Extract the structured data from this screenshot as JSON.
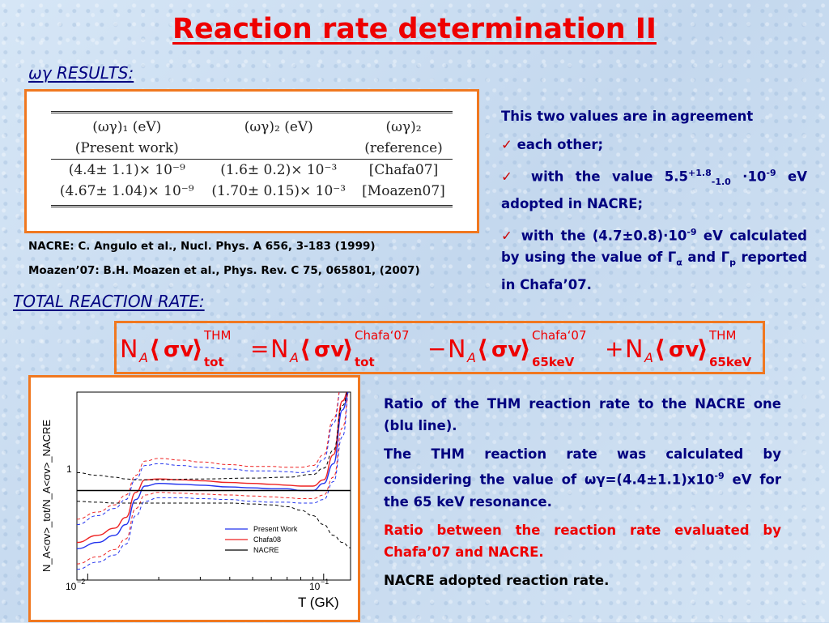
{
  "slide": {
    "title": "Reaction rate determination II",
    "section_wg": "ωγ RESULTS:",
    "section_total": "TOTAL REACTION RATE:"
  },
  "wg_table": {
    "headers_row1": [
      "(ωγ)₁ (eV)",
      "(ωγ)₂ (eV)",
      "(ωγ)₂"
    ],
    "headers_row2": [
      "(Present work)",
      "",
      "(reference)"
    ],
    "rows": [
      [
        "(4.4± 1.1)× 10⁻⁹",
        "(1.6± 0.2)× 10⁻³",
        "[Chafa07]"
      ],
      [
        "(4.67± 1.04)× 10⁻⁹",
        "(1.70± 0.15)× 10⁻³",
        "[Moazen07]"
      ]
    ]
  },
  "references": {
    "nacre": "NACRE: C. Angulo et al., Nucl. Phys. A 656, 3-183 (1999)",
    "moazen": "Moazen’07: B.H. Moazen et al., Phys. Rev. C 75, 065801, (2007)"
  },
  "agreement": {
    "intro": "This two values are in agreement",
    "tick": "✓",
    "item1": "each other;",
    "item2_a": "with the value 5.5",
    "item2_sup": "+1.8",
    "item2_sub": "-1.0",
    "item2_b": " ·10",
    "item2_exp": "-9",
    "item2_c": " eV adopted in NACRE;",
    "item3_a": "with the (4.7±0.8)·10",
    "item3_exp": "-9",
    "item3_b": " eV calculated by using the value of Γ",
    "item3_sub1": "α",
    "item3_c": " and Γ",
    "item3_sub2": "p",
    "item3_d": " reported in Chafa’07."
  },
  "formula": {
    "n": "N",
    "a": "A",
    "sv": "σv",
    "eq": "=",
    "minus": "−",
    "plus": "+",
    "thm": "THM",
    "chafa": "Chafa‘07",
    "tot": "tot",
    "kev": "65keV"
  },
  "right_text": {
    "p1": "Ratio of the THM reaction rate to the NACRE one (blu line).",
    "p2_a": "The THM reaction rate was calculated by considering the value of ωγ=(4.4±1.1)x10",
    "p2_exp": "-9",
    "p2_b": " eV for the 65 keV resonance.",
    "p3": "Ratio between the reaction rate evaluated by Chafa’07 and NACRE.",
    "p4": "NACRE adopted reaction rate."
  },
  "chart_data": {
    "type": "line",
    "xlabel": "T (GK)",
    "ylabel": "N_A<σv>_tot/N_A<σv>_NACRE",
    "xscale": "log",
    "xlim": [
      0.009,
      0.13
    ],
    "tick_labels": {
      "x_left": "10",
      "x_left_exp": "−2",
      "x_right": "10",
      "x_right_exp": "−1",
      "y_one": "1"
    },
    "legend": [
      "Present Work",
      "Chafa08",
      "NACRE"
    ],
    "colors": {
      "present": "#2233ee",
      "chafa": "#ee2222",
      "nacre": "#000000"
    },
    "series": [
      {
        "name": "Present Work",
        "style": "solid",
        "x": [
          0.009,
          0.011,
          0.013,
          0.0145,
          0.016,
          0.0175,
          0.02,
          0.025,
          0.03,
          0.04,
          0.05,
          0.06,
          0.07,
          0.08,
          0.09,
          0.1,
          0.11,
          0.12,
          0.13
        ],
        "y": [
          0.35,
          0.42,
          0.5,
          0.62,
          0.9,
          1.05,
          1.08,
          1.07,
          1.06,
          1.04,
          1.03,
          1.02,
          1.02,
          1.0,
          1.0,
          1.08,
          1.3,
          1.9,
          2.6
        ]
      },
      {
        "name": "Present Work upper",
        "style": "dashed",
        "x": [
          0.009,
          0.011,
          0.013,
          0.0145,
          0.016,
          0.0175,
          0.02,
          0.025,
          0.03,
          0.04,
          0.05,
          0.06,
          0.07,
          0.08,
          0.09,
          0.1,
          0.11,
          0.12,
          0.13
        ],
        "y": [
          0.62,
          0.72,
          0.8,
          0.9,
          1.13,
          1.28,
          1.3,
          1.28,
          1.26,
          1.24,
          1.22,
          1.22,
          1.21,
          1.2,
          1.22,
          1.35,
          1.75,
          2.3,
          2.9
        ]
      },
      {
        "name": "Present Work lower",
        "style": "dashed",
        "x": [
          0.009,
          0.011,
          0.013,
          0.0145,
          0.016,
          0.0175,
          0.02,
          0.025,
          0.03,
          0.04,
          0.05,
          0.06,
          0.07,
          0.08,
          0.09,
          0.1,
          0.11,
          0.12,
          0.13
        ],
        "y": [
          0.12,
          0.2,
          0.28,
          0.4,
          0.72,
          0.88,
          0.92,
          0.92,
          0.91,
          0.9,
          0.88,
          0.87,
          0.87,
          0.86,
          0.86,
          0.9,
          1.1,
          1.6,
          2.3
        ]
      },
      {
        "name": "Chafa08",
        "style": "solid",
        "x": [
          0.009,
          0.011,
          0.013,
          0.0145,
          0.016,
          0.0175,
          0.02,
          0.025,
          0.03,
          0.04,
          0.05,
          0.06,
          0.07,
          0.08,
          0.09,
          0.1,
          0.11,
          0.12,
          0.13
        ],
        "y": [
          0.42,
          0.5,
          0.58,
          0.7,
          0.98,
          1.12,
          1.13,
          1.12,
          1.11,
          1.09,
          1.08,
          1.07,
          1.06,
          1.05,
          1.05,
          1.12,
          1.4,
          2.0,
          2.7
        ]
      },
      {
        "name": "Chafa08 upper",
        "style": "dashed",
        "x": [
          0.009,
          0.011,
          0.013,
          0.0145,
          0.016,
          0.0175,
          0.02,
          0.025,
          0.03,
          0.04,
          0.05,
          0.06,
          0.07,
          0.08,
          0.09,
          0.1,
          0.11,
          0.12,
          0.13
        ],
        "y": [
          0.68,
          0.76,
          0.84,
          0.95,
          1.17,
          1.33,
          1.36,
          1.34,
          1.32,
          1.29,
          1.27,
          1.27,
          1.26,
          1.26,
          1.28,
          1.4,
          1.8,
          2.4,
          3.0
        ]
      },
      {
        "name": "Chafa08 lower",
        "style": "dashed",
        "x": [
          0.009,
          0.011,
          0.013,
          0.0145,
          0.016,
          0.0175,
          0.02,
          0.025,
          0.03,
          0.04,
          0.05,
          0.06,
          0.07,
          0.08,
          0.09,
          0.1,
          0.11,
          0.12,
          0.13
        ],
        "y": [
          0.18,
          0.26,
          0.34,
          0.46,
          0.8,
          0.95,
          0.98,
          0.97,
          0.96,
          0.95,
          0.94,
          0.93,
          0.92,
          0.91,
          0.91,
          0.95,
          1.15,
          1.7,
          2.4
        ]
      },
      {
        "name": "NACRE",
        "style": "solid",
        "x": [
          0.009,
          0.13
        ],
        "y": [
          1.0,
          1.0
        ]
      },
      {
        "name": "NACRE upper",
        "style": "dashed",
        "x": [
          0.009,
          0.011,
          0.013,
          0.0145,
          0.016,
          0.0175,
          0.02,
          0.03,
          0.05,
          0.07,
          0.09,
          0.1,
          0.11,
          0.12,
          0.13
        ],
        "y": [
          1.2,
          1.17,
          1.15,
          1.13,
          1.12,
          1.12,
          1.12,
          1.13,
          1.14,
          1.15,
          1.18,
          1.25,
          1.45,
          1.95,
          2.5
        ]
      },
      {
        "name": "NACRE lower",
        "style": "dashed",
        "x": [
          0.009,
          0.011,
          0.013,
          0.0145,
          0.016,
          0.02,
          0.03,
          0.04,
          0.05,
          0.06,
          0.07,
          0.08,
          0.09,
          0.1,
          0.11,
          0.12,
          0.13
        ],
        "y": [
          0.88,
          0.87,
          0.86,
          0.86,
          0.86,
          0.86,
          0.86,
          0.86,
          0.85,
          0.84,
          0.82,
          0.78,
          0.72,
          0.62,
          0.5,
          0.42,
          0.36
        ]
      }
    ]
  }
}
